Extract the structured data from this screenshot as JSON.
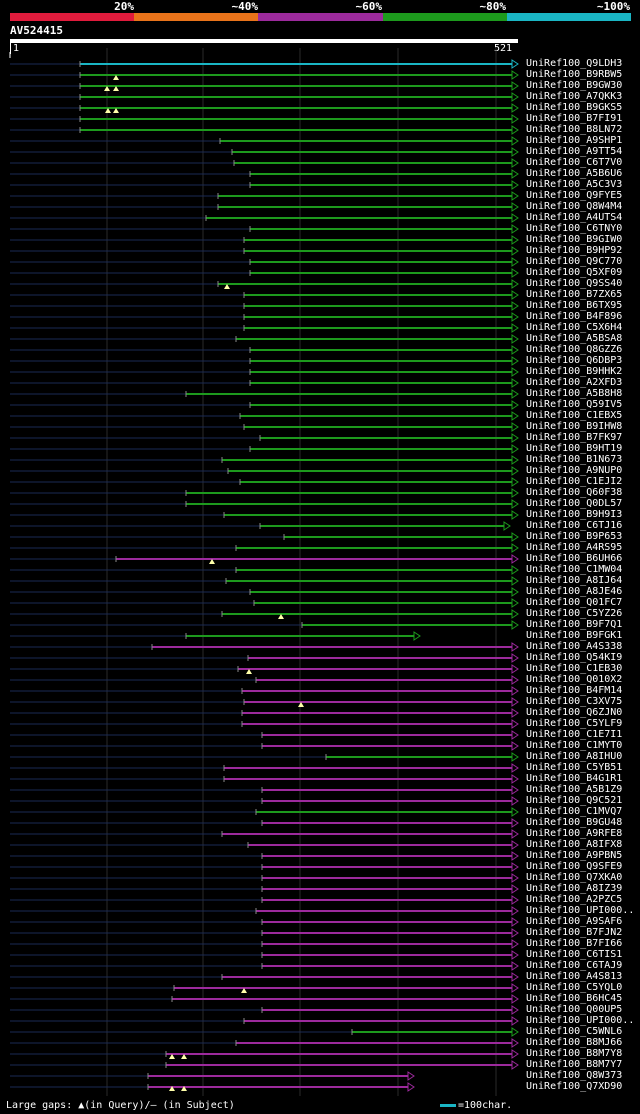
{
  "legend": {
    "labels": [
      "20%",
      "~40%",
      "~60%",
      "~80%",
      "~100%"
    ],
    "colors": [
      "#e01b3c",
      "#e8731a",
      "#9c2a9c",
      "#1d9a1d",
      "#1ab5c4"
    ]
  },
  "query": {
    "id": "AV524415",
    "start": "1",
    "end": "521"
  },
  "footer": {
    "gaps_text": "Large gaps: ▲(in Query)/— (in Subject)",
    "scale_text": "=100char."
  },
  "hits": [
    {
      "label": "UniRef100_Q9LDH3",
      "start": 80,
      "color": "#1ab5c4"
    },
    {
      "label": "UniRef100_B9RBW5",
      "start": 80,
      "color": "#1d9a1d"
    },
    {
      "label": "UniRef100_B9GW30",
      "start": 80,
      "color": "#1d9a1d"
    },
    {
      "label": "UniRef100_A7QKK3",
      "start": 80,
      "color": "#1d9a1d"
    },
    {
      "label": "UniRef100_B9GKS5",
      "start": 80,
      "color": "#1d9a1d"
    },
    {
      "label": "UniRef100_B7FI91",
      "start": 80,
      "color": "#1d9a1d"
    },
    {
      "label": "UniRef100_B8LN72",
      "start": 80,
      "color": "#1d9a1d"
    },
    {
      "label": "UniRef100_A9SHP1",
      "start": 220,
      "color": "#1d9a1d"
    },
    {
      "label": "UniRef100_A9TT54",
      "start": 232,
      "color": "#1d9a1d"
    },
    {
      "label": "UniRef100_C6T7V0",
      "start": 234,
      "color": "#1d9a1d"
    },
    {
      "label": "UniRef100_A5B6U6",
      "start": 250,
      "color": "#1d9a1d"
    },
    {
      "label": "UniRef100_A5C3V3",
      "start": 250,
      "color": "#1d9a1d"
    },
    {
      "label": "UniRef100_Q9FYE5",
      "start": 218,
      "color": "#1d9a1d"
    },
    {
      "label": "UniRef100_Q8W4M4",
      "start": 218,
      "color": "#1d9a1d"
    },
    {
      "label": "UniRef100_A4UTS4",
      "start": 206,
      "color": "#1d9a1d"
    },
    {
      "label": "UniRef100_C6TNY0",
      "start": 250,
      "color": "#1d9a1d"
    },
    {
      "label": "UniRef100_B9GIW0",
      "start": 244,
      "color": "#1d9a1d"
    },
    {
      "label": "UniRef100_B9HP92",
      "start": 244,
      "color": "#1d9a1d"
    },
    {
      "label": "UniRef100_Q9C770",
      "start": 250,
      "color": "#1d9a1d"
    },
    {
      "label": "UniRef100_Q5XF09",
      "start": 250,
      "color": "#1d9a1d"
    },
    {
      "label": "UniRef100_Q9SS40",
      "start": 218,
      "color": "#1d9a1d"
    },
    {
      "label": "UniRef100_B7ZX65",
      "start": 244,
      "color": "#1d9a1d"
    },
    {
      "label": "UniRef100_B6TX95",
      "start": 244,
      "color": "#1d9a1d"
    },
    {
      "label": "UniRef100_B4F896",
      "start": 244,
      "color": "#1d9a1d"
    },
    {
      "label": "UniRef100_C5X6H4",
      "start": 244,
      "color": "#1d9a1d"
    },
    {
      "label": "UniRef100_A5BSA8",
      "start": 236,
      "color": "#1d9a1d"
    },
    {
      "label": "UniRef100_Q8GZZ6",
      "start": 250,
      "color": "#1d9a1d"
    },
    {
      "label": "UniRef100_Q6DBP3",
      "start": 250,
      "color": "#1d9a1d"
    },
    {
      "label": "UniRef100_B9HHK2",
      "start": 250,
      "color": "#1d9a1d"
    },
    {
      "label": "UniRef100_A2XFD3",
      "start": 250,
      "color": "#1d9a1d"
    },
    {
      "label": "UniRef100_A5B8H8",
      "start": 186,
      "color": "#1d9a1d"
    },
    {
      "label": "UniRef100_Q59IV5",
      "start": 250,
      "color": "#1d9a1d"
    },
    {
      "label": "UniRef100_C1EBX5",
      "start": 240,
      "color": "#1d9a1d"
    },
    {
      "label": "UniRef100_B9IHW8",
      "start": 244,
      "color": "#1d9a1d"
    },
    {
      "label": "UniRef100_B7FK97",
      "start": 260,
      "color": "#1d9a1d"
    },
    {
      "label": "UniRef100_B9HT19",
      "start": 250,
      "color": "#1d9a1d"
    },
    {
      "label": "UniRef100_B1N673",
      "start": 222,
      "color": "#1d9a1d"
    },
    {
      "label": "UniRef100_A9NUP0",
      "start": 228,
      "color": "#1d9a1d"
    },
    {
      "label": "UniRef100_C1EJI2",
      "start": 240,
      "color": "#1d9a1d"
    },
    {
      "label": "UniRef100_Q60F38",
      "start": 186,
      "color": "#1d9a1d"
    },
    {
      "label": "UniRef100_Q0DL57",
      "start": 186,
      "color": "#1d9a1d"
    },
    {
      "label": "UniRef100_B9H9I3",
      "start": 224,
      "color": "#1d9a1d"
    },
    {
      "label": "UniRef100_C6TJ16",
      "start": 260,
      "color": "#1d9a1d"
    },
    {
      "label": "UniRef100_B9P653",
      "start": 284,
      "color": "#1d9a1d"
    },
    {
      "label": "UniRef100_A4RS95",
      "start": 236,
      "color": "#1d9a1d"
    },
    {
      "label": "UniRef100_B6UH66",
      "start": 116,
      "color": "#9c2a9c"
    },
    {
      "label": "UniRef100_C1MW04",
      "start": 236,
      "color": "#1d9a1d"
    },
    {
      "label": "UniRef100_A8IJ64",
      "start": 226,
      "color": "#1d9a1d"
    },
    {
      "label": "UniRef100_A8JE46",
      "start": 250,
      "color": "#1d9a1d"
    },
    {
      "label": "UniRef100_Q01FC7",
      "start": 254,
      "color": "#1d9a1d"
    },
    {
      "label": "UniRef100_C5YZ26",
      "start": 222,
      "color": "#1d9a1d"
    },
    {
      "label": "UniRef100_B9F7Q1",
      "start": 302,
      "color": "#1d9a1d"
    },
    {
      "label": "UniRef100_B9FGK1",
      "start": 186,
      "color": "#1d9a1d"
    },
    {
      "label": "UniRef100_A4S338",
      "start": 152,
      "color": "#9c2a9c"
    },
    {
      "label": "UniRef100_Q54KI9",
      "start": 248,
      "color": "#9c2a9c"
    },
    {
      "label": "UniRef100_C1EB30",
      "start": 238,
      "color": "#9c2a9c"
    },
    {
      "label": "UniRef100_Q010X2",
      "start": 256,
      "color": "#9c2a9c"
    },
    {
      "label": "UniRef100_B4FM14",
      "start": 242,
      "color": "#9c2a9c"
    },
    {
      "label": "UniRef100_C3XV75",
      "start": 244,
      "color": "#9c2a9c"
    },
    {
      "label": "UniRef100_Q6ZJN0",
      "start": 242,
      "color": "#9c2a9c"
    },
    {
      "label": "UniRef100_C5YLF9",
      "start": 242,
      "color": "#9c2a9c"
    },
    {
      "label": "UniRef100_C1E7I1",
      "start": 262,
      "color": "#9c2a9c"
    },
    {
      "label": "UniRef100_C1MYT0",
      "start": 262,
      "color": "#9c2a9c"
    },
    {
      "label": "UniRef100_A8IHU0",
      "start": 326,
      "color": "#1d9a1d"
    },
    {
      "label": "UniRef100_C5YB51",
      "start": 224,
      "color": "#9c2a9c"
    },
    {
      "label": "UniRef100_B4G1R1",
      "start": 224,
      "color": "#9c2a9c"
    },
    {
      "label": "UniRef100_A5B1Z9",
      "start": 262,
      "color": "#9c2a9c"
    },
    {
      "label": "UniRef100_Q9C521",
      "start": 262,
      "color": "#9c2a9c"
    },
    {
      "label": "UniRef100_C1MVQ7",
      "start": 256,
      "color": "#1d9a1d"
    },
    {
      "label": "UniRef100_B9GU48",
      "start": 262,
      "color": "#9c2a9c"
    },
    {
      "label": "UniRef100_A9RFE8",
      "start": 222,
      "color": "#9c2a9c"
    },
    {
      "label": "UniRef100_A8IFX8",
      "start": 248,
      "color": "#9c2a9c"
    },
    {
      "label": "UniRef100_A9PBN5",
      "start": 262,
      "color": "#9c2a9c"
    },
    {
      "label": "UniRef100_Q9SFE9",
      "start": 262,
      "color": "#9c2a9c"
    },
    {
      "label": "UniRef100_Q7XKA0",
      "start": 262,
      "color": "#9c2a9c"
    },
    {
      "label": "UniRef100_A8IZ39",
      "start": 262,
      "color": "#9c2a9c"
    },
    {
      "label": "UniRef100_A2PZC5",
      "start": 262,
      "color": "#9c2a9c"
    },
    {
      "label": "UniRef100_UPI000..",
      "start": 256,
      "color": "#9c2a9c"
    },
    {
      "label": "UniRef100_A9SAF6",
      "start": 262,
      "color": "#9c2a9c"
    },
    {
      "label": "UniRef100_B7FJN2",
      "start": 262,
      "color": "#9c2a9c"
    },
    {
      "label": "UniRef100_B7FI66",
      "start": 262,
      "color": "#9c2a9c"
    },
    {
      "label": "UniRef100_C6TIS1",
      "start": 262,
      "color": "#9c2a9c"
    },
    {
      "label": "UniRef100_C6TAJ9",
      "start": 262,
      "color": "#9c2a9c"
    },
    {
      "label": "UniRef100_A4S813",
      "start": 222,
      "color": "#9c2a9c"
    },
    {
      "label": "UniRef100_C5YQL0",
      "start": 174,
      "color": "#9c2a9c"
    },
    {
      "label": "UniRef100_B6HC45",
      "start": 172,
      "color": "#9c2a9c"
    },
    {
      "label": "UniRef100_Q00UP5",
      "start": 262,
      "color": "#9c2a9c"
    },
    {
      "label": "UniRef100_UPI000..",
      "start": 244,
      "color": "#9c2a9c"
    },
    {
      "label": "UniRef100_C5WNL6",
      "start": 352,
      "color": "#1d9a1d"
    },
    {
      "label": "UniRef100_B8MJ66",
      "start": 236,
      "color": "#9c2a9c"
    },
    {
      "label": "UniRef100_B8M7Y8",
      "start": 166,
      "color": "#9c2a9c"
    },
    {
      "label": "UniRef100_B8M7Y7",
      "start": 166,
      "color": "#9c2a9c"
    },
    {
      "label": "UniRef100_Q8W373",
      "start": 148,
      "color": "#9c2a9c"
    },
    {
      "label": "UniRef100_Q7XD90",
      "start": 148,
      "color": "#9c2a9c"
    }
  ]
}
